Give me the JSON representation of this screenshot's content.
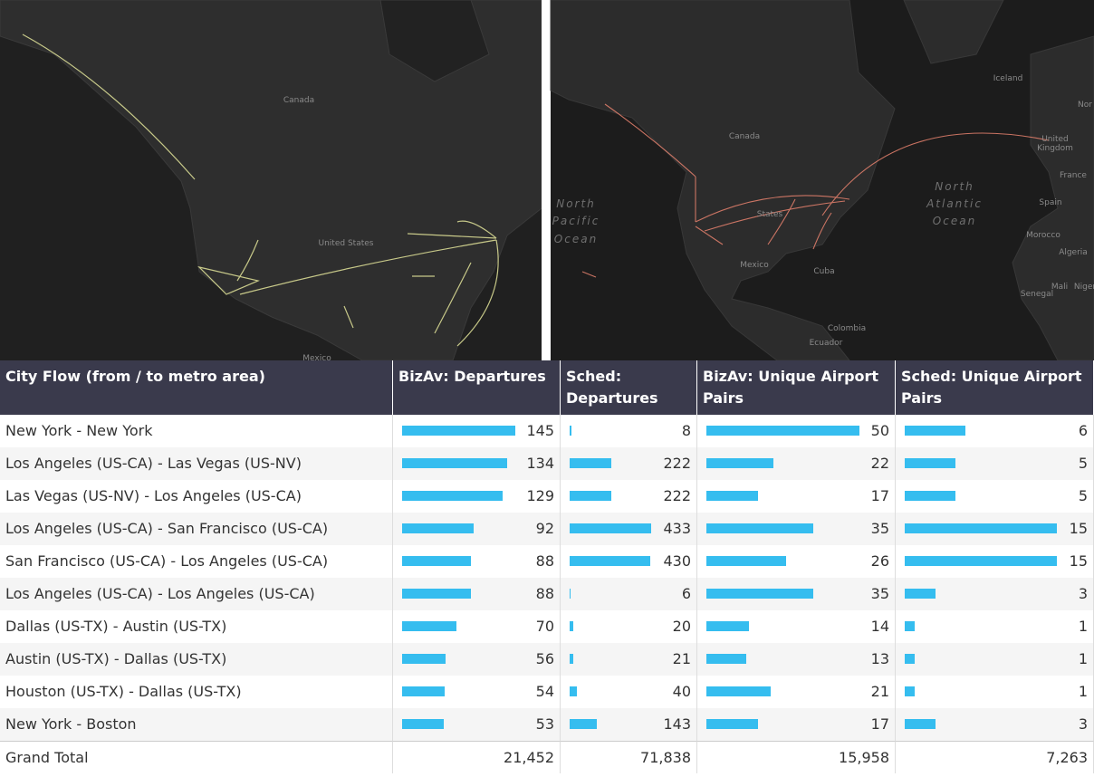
{
  "maps": [
    {
      "labels": [
        "Canada",
        "United States",
        "Mexico"
      ]
    },
    {
      "labels": [
        "Canada",
        "States",
        "Mexico",
        "Cuba",
        "North",
        "Pacific",
        "Ocean",
        "North",
        "Atlantic",
        "Ocean",
        "Iceland",
        "United",
        "Kingdom",
        "France",
        "Spain",
        "Morocco",
        "Algeria",
        "Mali",
        "Niger",
        "Senegal",
        "Colombia",
        "Ecuador",
        "Nor"
      ]
    }
  ],
  "table": {
    "columns": [
      "City Flow (from / to metro area)",
      "BizAv: Departures",
      "Sched: Departures",
      "BizAv: Unique Airport Pairs",
      "Sched: Unique Airport Pairs"
    ],
    "rows": [
      [
        "New York - New York",
        145,
        8,
        50,
        6
      ],
      [
        "Los Angeles (US-CA) - Las Vegas (US-NV)",
        134,
        222,
        22,
        5
      ],
      [
        "Las Vegas (US-NV) - Los Angeles (US-CA)",
        129,
        222,
        17,
        5
      ],
      [
        "Los Angeles (US-CA) - San Francisco (US-CA)",
        92,
        433,
        35,
        15
      ],
      [
        "San Francisco (US-CA) - Los Angeles (US-CA)",
        88,
        430,
        26,
        15
      ],
      [
        "Los Angeles (US-CA) - Los Angeles (US-CA)",
        88,
        6,
        35,
        3
      ],
      [
        "Dallas (US-TX) - Austin (US-TX)",
        70,
        20,
        14,
        1
      ],
      [
        "Austin (US-TX) - Dallas (US-TX)",
        56,
        21,
        13,
        1
      ],
      [
        "Houston (US-TX) - Dallas (US-TX)",
        54,
        40,
        21,
        1
      ],
      [
        "New York - Boston",
        53,
        143,
        17,
        3
      ]
    ],
    "total": [
      "Grand Total",
      "21,452",
      "71,838",
      "15,958",
      "7,263"
    ]
  }
}
